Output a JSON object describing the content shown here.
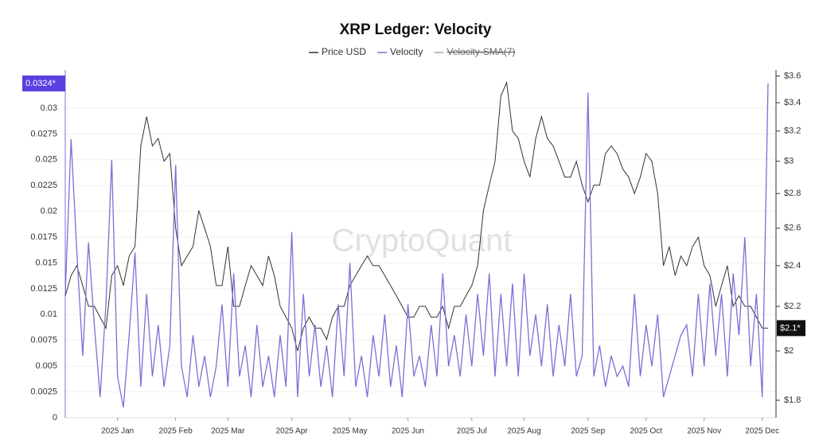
{
  "chart_data": {
    "type": "line",
    "title": "XRP Ledger: Velocity",
    "watermark": "CryptoQuant",
    "categories": [
      null,
      null,
      null,
      null,
      null,
      null,
      null,
      null,
      null,
      "2025 Jan",
      null,
      null,
      null,
      null,
      null,
      null,
      null,
      null,
      null,
      "2025 Feb",
      null,
      null,
      null,
      null,
      null,
      null,
      null,
      null,
      "2025 Mar",
      null,
      null,
      null,
      null,
      null,
      null,
      null,
      null,
      null,
      null,
      "2025 Apr",
      null,
      null,
      null,
      null,
      null,
      null,
      null,
      null,
      null,
      "2025 May",
      null,
      null,
      null,
      null,
      null,
      null,
      null,
      null,
      null,
      "2025 Jun",
      null,
      null,
      null,
      null,
      null,
      null,
      null,
      null,
      null,
      null,
      "2025 Jul",
      null,
      null,
      null,
      null,
      null,
      null,
      null,
      null,
      "2025 Aug",
      null,
      null,
      null,
      null,
      null,
      null,
      null,
      null,
      null,
      null,
      "2025 Sep",
      null,
      null,
      null,
      null,
      null,
      null,
      null,
      null,
      null,
      "2025 Oct",
      null,
      null,
      null,
      null,
      null,
      null,
      null,
      null,
      null,
      "2025 Nov",
      null,
      null,
      null,
      null,
      null,
      null,
      null,
      null,
      null,
      "2025 Dec",
      null
    ],
    "series": [
      {
        "name": "Price USD",
        "color": "#333333",
        "axis": "y2",
        "last_value_label": "$2.1*",
        "values": [
          2.25,
          2.35,
          2.4,
          2.3,
          2.2,
          2.2,
          2.15,
          2.1,
          2.35,
          2.4,
          2.3,
          2.45,
          2.5,
          3.1,
          3.3,
          3.1,
          3.15,
          3.0,
          3.05,
          2.6,
          2.4,
          2.45,
          2.5,
          2.7,
          2.6,
          2.5,
          2.3,
          2.3,
          2.5,
          2.2,
          2.2,
          2.3,
          2.4,
          2.35,
          2.3,
          2.45,
          2.35,
          2.2,
          2.15,
          2.1,
          2.0,
          2.1,
          2.15,
          2.1,
          2.1,
          2.05,
          2.15,
          2.2,
          2.2,
          2.3,
          2.35,
          2.4,
          2.45,
          2.4,
          2.4,
          2.35,
          2.3,
          2.25,
          2.2,
          2.15,
          2.15,
          2.2,
          2.2,
          2.15,
          2.15,
          2.2,
          2.1,
          2.2,
          2.2,
          2.25,
          2.3,
          2.4,
          2.7,
          2.85,
          3.0,
          3.45,
          3.55,
          3.2,
          3.15,
          3.0,
          2.9,
          3.15,
          3.3,
          3.15,
          3.1,
          3.0,
          2.9,
          2.9,
          3.0,
          2.85,
          2.75,
          2.85,
          2.85,
          3.05,
          3.1,
          3.05,
          2.95,
          2.9,
          2.8,
          2.9,
          3.05,
          3.0,
          2.8,
          2.4,
          2.5,
          2.35,
          2.45,
          2.4,
          2.5,
          2.55,
          2.4,
          2.35,
          2.2,
          2.3,
          2.4,
          2.2,
          2.25,
          2.2,
          2.2,
          2.15,
          2.1,
          2.1
        ]
      },
      {
        "name": "Velocity",
        "color": "#7b6fd6",
        "last_value_label": "0.0324*",
        "values": [
          0.012,
          0.027,
          0.016,
          0.006,
          0.017,
          0.009,
          0.002,
          0.011,
          0.025,
          0.004,
          0.001,
          0.008,
          0.016,
          0.003,
          0.012,
          0.004,
          0.009,
          0.003,
          0.007,
          0.0245,
          0.005,
          0.002,
          0.008,
          0.003,
          0.006,
          0.002,
          0.005,
          0.011,
          0.003,
          0.014,
          0.004,
          0.007,
          0.002,
          0.009,
          0.003,
          0.006,
          0.002,
          0.008,
          0.003,
          0.018,
          0.002,
          0.012,
          0.004,
          0.009,
          0.003,
          0.007,
          0.002,
          0.011,
          0.004,
          0.015,
          0.003,
          0.006,
          0.002,
          0.008,
          0.004,
          0.01,
          0.003,
          0.007,
          0.002,
          0.011,
          0.004,
          0.006,
          0.003,
          0.009,
          0.004,
          0.014,
          0.005,
          0.008,
          0.004,
          0.01,
          0.005,
          0.012,
          0.006,
          0.014,
          0.004,
          0.012,
          0.005,
          0.013,
          0.004,
          0.014,
          0.006,
          0.01,
          0.005,
          0.011,
          0.004,
          0.009,
          0.005,
          0.012,
          0.004,
          0.006,
          0.0315,
          0.004,
          0.007,
          0.003,
          0.006,
          0.004,
          0.005,
          0.003,
          0.012,
          0.004,
          0.009,
          0.005,
          0.01,
          0.002,
          0.004,
          0.006,
          0.008,
          0.009,
          0.004,
          0.012,
          0.005,
          0.013,
          0.006,
          0.012,
          0.004,
          0.014,
          0.008,
          0.0175,
          0.005,
          0.012,
          0.002,
          0.0324
        ]
      },
      {
        "name": "Velocity-SMA(7)",
        "color": "#aaaaaa",
        "hidden": true
      }
    ],
    "ylim": [
      0,
      0.0337
    ],
    "yticks": [
      0,
      0.0025,
      0.005,
      0.0075,
      0.01,
      0.0125,
      0.015,
      0.0175,
      0.02,
      0.0225,
      0.025,
      0.0275,
      0.03
    ],
    "y2lim": [
      1.734,
      3.646
    ],
    "y2log": true,
    "y2ticks": [
      {
        "value": 1.8,
        "label": "$1.8"
      },
      {
        "value": 2,
        "label": "$2"
      },
      {
        "value": 2.2,
        "label": "$2.2"
      },
      {
        "value": 2.4,
        "label": "$2.4"
      },
      {
        "value": 2.6,
        "label": "$2.6"
      },
      {
        "value": 2.8,
        "label": "$2.8"
      },
      {
        "value": 3,
        "label": "$3"
      },
      {
        "value": 3.2,
        "label": "$3.2"
      },
      {
        "value": 3.4,
        "label": "$3.4"
      },
      {
        "value": 3.6,
        "label": "$3.6"
      }
    ],
    "grid": true
  }
}
